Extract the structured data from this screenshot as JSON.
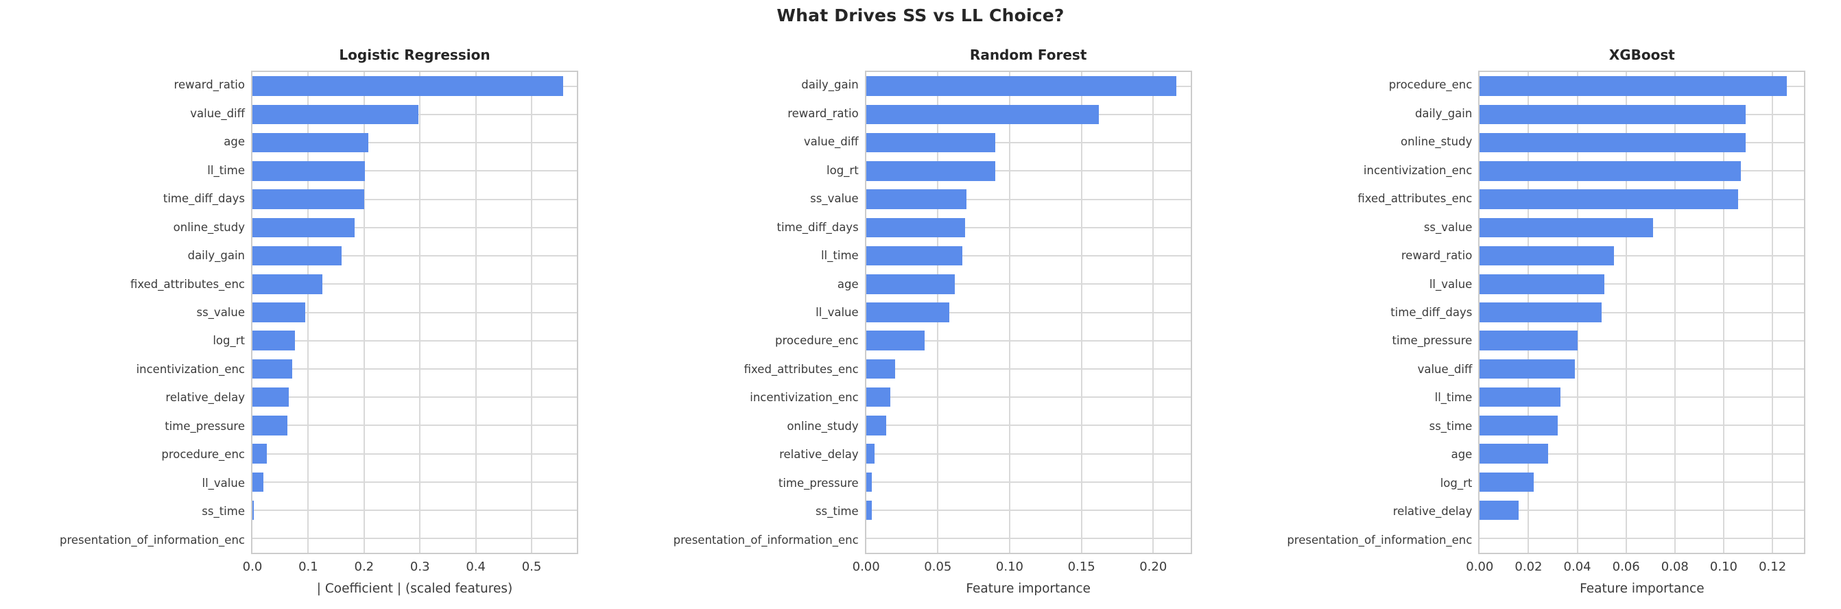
{
  "page": {
    "title": "What Drives SS vs LL Choice?"
  },
  "style": {
    "bar_color": "#5b8ceb",
    "grid_color": "#d9d9d9",
    "border_color": "#cccccc",
    "text_color": "#262626"
  },
  "chart_data": [
    {
      "type": "bar",
      "orientation": "horizontal",
      "title": "Logistic Regression",
      "xlabel": "| Coefficient | (scaled features)",
      "grid": true,
      "xlim": [
        0,
        0.581
      ],
      "xtick_values": [
        0.0,
        0.1,
        0.2,
        0.3,
        0.4,
        0.5
      ],
      "xtick_labels": [
        "0.0",
        "0.1",
        "0.2",
        "0.3",
        "0.4",
        "0.5"
      ],
      "categories": [
        "reward_ratio",
        "value_diff",
        "age",
        "ll_time",
        "time_diff_days",
        "online_study",
        "daily_gain",
        "fixed_attributes_enc",
        "ss_value",
        "log_rt",
        "incentivization_enc",
        "relative_delay",
        "time_pressure",
        "procedure_enc",
        "ll_value",
        "ss_time",
        "presentation_of_information_enc"
      ],
      "values": [
        0.557,
        0.297,
        0.208,
        0.201,
        0.2,
        0.183,
        0.16,
        0.125,
        0.095,
        0.076,
        0.071,
        0.065,
        0.063,
        0.026,
        0.02,
        0.002,
        0.0
      ]
    },
    {
      "type": "bar",
      "orientation": "horizontal",
      "title": "Random Forest",
      "xlabel": "Feature importance",
      "grid": true,
      "xlim": [
        0,
        0.226
      ],
      "xtick_values": [
        0.0,
        0.05,
        0.1,
        0.15,
        0.2
      ],
      "xtick_labels": [
        "0.00",
        "0.05",
        "0.10",
        "0.15",
        "0.20"
      ],
      "categories": [
        "daily_gain",
        "reward_ratio",
        "value_diff",
        "log_rt",
        "ss_value",
        "time_diff_days",
        "ll_time",
        "age",
        "ll_value",
        "procedure_enc",
        "fixed_attributes_enc",
        "incentivization_enc",
        "online_study",
        "relative_delay",
        "time_pressure",
        "ss_time",
        "presentation_of_information_enc"
      ],
      "values": [
        0.216,
        0.162,
        0.09,
        0.09,
        0.07,
        0.069,
        0.067,
        0.062,
        0.058,
        0.041,
        0.02,
        0.017,
        0.014,
        0.006,
        0.004,
        0.004,
        0.0
      ]
    },
    {
      "type": "bar",
      "orientation": "horizontal",
      "title": "XGBoost",
      "xlabel": "Feature importance",
      "grid": true,
      "xlim": [
        0,
        0.133
      ],
      "xtick_values": [
        0.0,
        0.02,
        0.04,
        0.06,
        0.08,
        0.1,
        0.12
      ],
      "xtick_labels": [
        "0.00",
        "0.02",
        "0.04",
        "0.06",
        "0.08",
        "0.10",
        "0.12"
      ],
      "categories": [
        "procedure_enc",
        "daily_gain",
        "online_study",
        "incentivization_enc",
        "fixed_attributes_enc",
        "ss_value",
        "reward_ratio",
        "ll_value",
        "time_diff_days",
        "time_pressure",
        "value_diff",
        "ll_time",
        "ss_time",
        "age",
        "log_rt",
        "relative_delay",
        "presentation_of_information_enc"
      ],
      "values": [
        0.126,
        0.109,
        0.109,
        0.107,
        0.106,
        0.071,
        0.055,
        0.051,
        0.05,
        0.04,
        0.039,
        0.033,
        0.032,
        0.028,
        0.022,
        0.016,
        0.0
      ]
    }
  ]
}
